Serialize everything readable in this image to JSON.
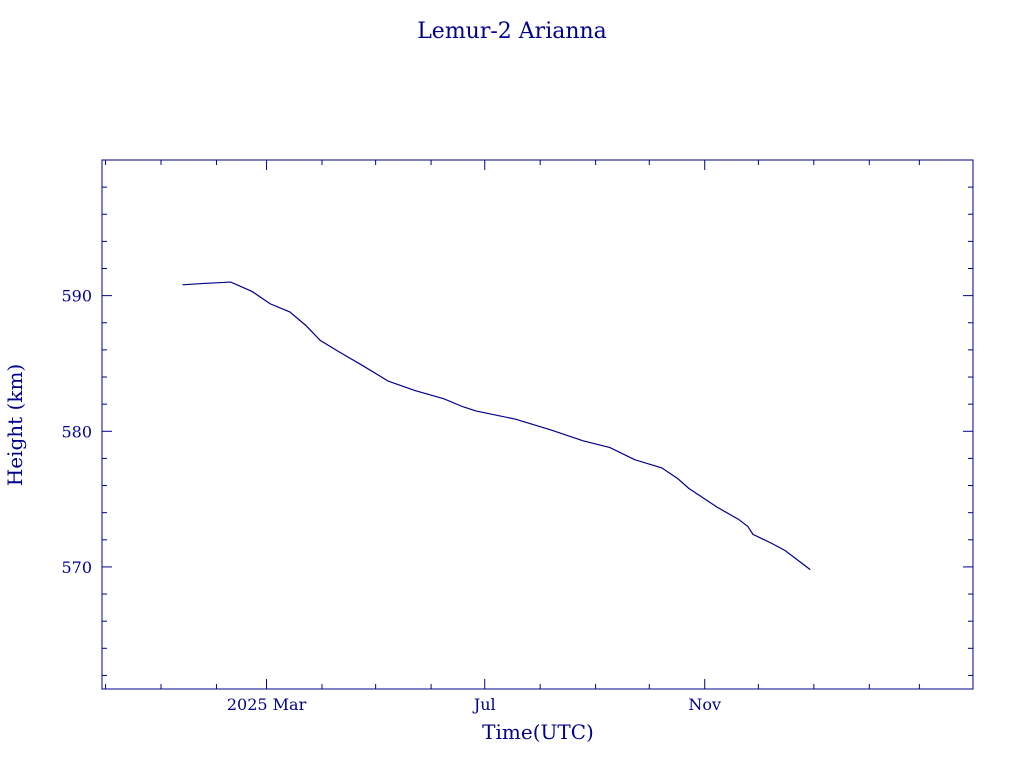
{
  "chart_data": {
    "type": "line",
    "title": "Lemur-2 Arianna",
    "xlabel": "Time(UTC)",
    "ylabel": "Height (km)",
    "xlim": [
      "2024-11-29",
      "2026-03-31"
    ],
    "ylim": [
      561,
      600
    ],
    "ytick_values": [
      570,
      580,
      590
    ],
    "yticks": [
      "570",
      "580",
      "590"
    ],
    "xtick_labels": [
      {
        "date": "2025-03-01",
        "label": "2025 Mar"
      },
      {
        "date": "2025-07-01",
        "label": "Jul"
      },
      {
        "date": "2025-11-01",
        "label": "Nov"
      }
    ],
    "minor_x_dates": [
      "2024-12-01",
      "2025-01-01",
      "2025-02-01",
      "2025-04-01",
      "2025-05-01",
      "2025-06-01",
      "2025-08-01",
      "2025-09-01",
      "2025-10-01",
      "2025-12-01",
      "2026-01-01",
      "2026-02-01",
      "2026-03-01"
    ],
    "grid": false,
    "color": "#00008b",
    "series": [
      {
        "points": [
          [
            "2025-01-13",
            590.8
          ],
          [
            "2025-01-25",
            590.9
          ],
          [
            "2025-02-09",
            591.0
          ],
          [
            "2025-02-21",
            590.3
          ],
          [
            "2025-03-03",
            589.4
          ],
          [
            "2025-03-14",
            588.8
          ],
          [
            "2025-03-23",
            587.8
          ],
          [
            "2025-03-31",
            586.7
          ],
          [
            "2025-04-10",
            585.9
          ],
          [
            "2025-04-23",
            584.9
          ],
          [
            "2025-05-08",
            583.7
          ],
          [
            "2025-05-23",
            583.0
          ],
          [
            "2025-06-08",
            582.4
          ],
          [
            "2025-06-19",
            581.8
          ],
          [
            "2025-06-26",
            581.5
          ],
          [
            "2025-07-18",
            580.9
          ],
          [
            "2025-08-07",
            580.1
          ],
          [
            "2025-08-25",
            579.3
          ],
          [
            "2025-09-09",
            578.8
          ],
          [
            "2025-09-23",
            577.9
          ],
          [
            "2025-10-08",
            577.3
          ],
          [
            "2025-10-17",
            576.5
          ],
          [
            "2025-10-23",
            575.8
          ],
          [
            "2025-11-08",
            574.4
          ],
          [
            "2025-11-20",
            573.5
          ],
          [
            "2025-11-25",
            573.0
          ],
          [
            "2025-11-28",
            572.4
          ],
          [
            "2025-12-09",
            571.7
          ],
          [
            "2025-12-16",
            571.2
          ],
          [
            "2025-12-23",
            570.5
          ],
          [
            "2025-12-30",
            569.8
          ]
        ]
      }
    ]
  }
}
